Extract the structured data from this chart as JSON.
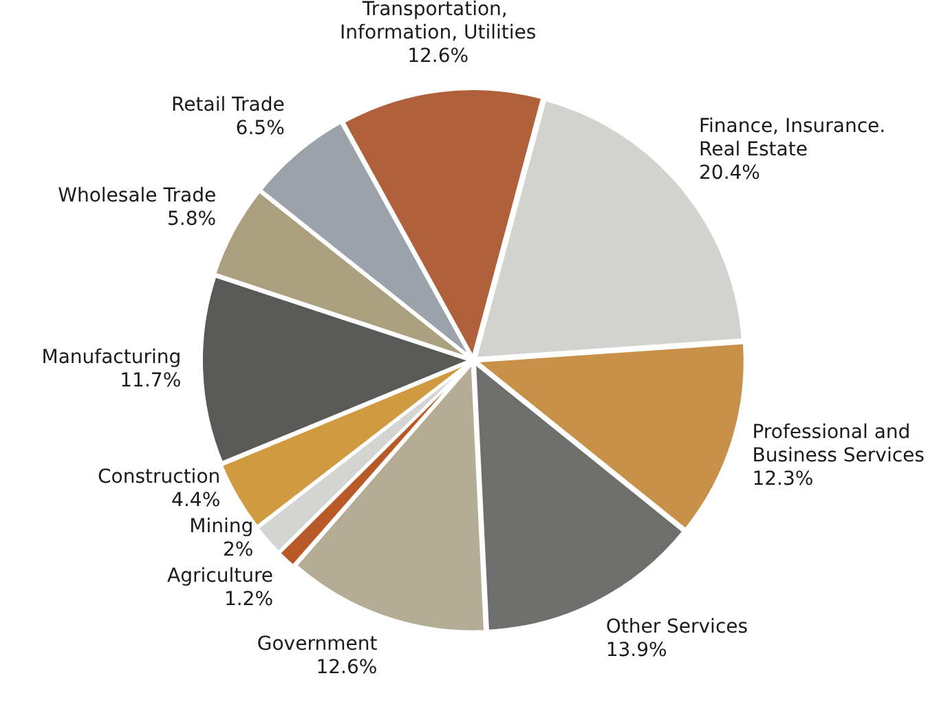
{
  "chart_data": {
    "type": "pie",
    "categories": [
      "Finance, Insurance. Real Estate",
      "Professional and Business Services",
      "Other Services",
      "Government",
      "Agriculture",
      "Mining",
      "Construction",
      "Manufacturing",
      "Wholesale Trade",
      "Retail Trade",
      "Transportation,  Information, Utilities"
    ],
    "values": [
      20.4,
      12.3,
      13.9,
      12.6,
      1.2,
      2,
      4.4,
      11.7,
      5.8,
      6.5,
      12.6
    ],
    "colors": [
      "#d2d2ce",
      "#c8914a",
      "#6e6e6c",
      "#b4ac94",
      "#b85a28",
      "#d4d4d2",
      "#d09a40",
      "#595957",
      "#aaa080",
      "#9ca2aa",
      "#b0603a"
    ],
    "value_labels": [
      "20.4%",
      "12.3%",
      "13.9%",
      "12.6%",
      "1.2%",
      "2%",
      "4.4%",
      "11.7%",
      "5.8%",
      "6.5%",
      "12.6%"
    ]
  }
}
